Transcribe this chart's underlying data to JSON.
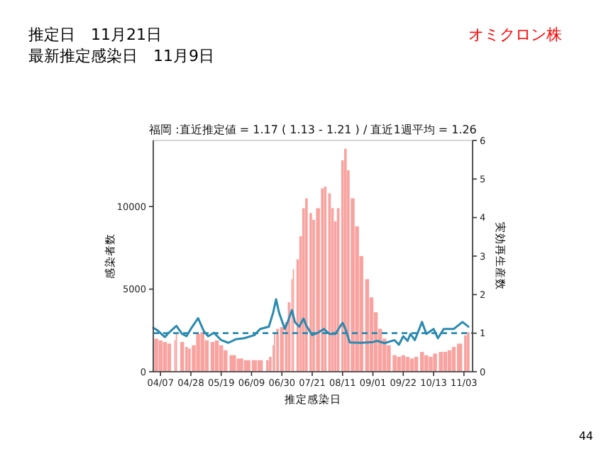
{
  "chart_data": {
    "type": "bar",
    "title": "福岡 :直近推定値 = 1.17 ( 1.13 - 1.21 ) / 直近1週平均 = 1.26",
    "subtitle": "推定日　11月21日",
    "xlabel": "推定感染日",
    "ylabel": "感染者数",
    "y2label": "実効再生産数",
    "annotations": [
      "最新推定感染日　11月9日",
      "オミクロン株",
      "44"
    ],
    "xlim": [
      "--04-02",
      "--11-09"
    ],
    "xticks": [
      {
        "value": "--04-07",
        "label": "04/07"
      },
      {
        "value": "--04-28",
        "label": "04/28"
      },
      {
        "value": "--05-19",
        "label": "05/19"
      },
      {
        "value": "--06-09",
        "label": "06/09"
      },
      {
        "value": "--06-30",
        "label": "06/30"
      },
      {
        "value": "--07-21",
        "label": "07/21"
      },
      {
        "value": "--08-11",
        "label": "08/11"
      },
      {
        "value": "--09-01",
        "label": "09/01"
      },
      {
        "value": "--09-22",
        "label": "09/22"
      },
      {
        "value": "--10-13",
        "label": "10/13"
      },
      {
        "value": "--11-03",
        "label": "11/03"
      }
    ],
    "ylim": [
      0,
      14000
    ],
    "yticks": [
      0,
      5000,
      10000
    ],
    "y2lim": [
      0,
      6
    ],
    "y2ticks": [
      0,
      1,
      2,
      3,
      4,
      5,
      6
    ],
    "ref_lines": [
      {
        "axis": "y2",
        "value": 1,
        "color": "#2a8ab0",
        "line_style": "dashed"
      }
    ],
    "series": [
      {
        "color": "#f8a3a0",
        "x": [
          "--04-04",
          "--04-07",
          "--04-10",
          "--04-13",
          "--04-17",
          "--04-18",
          "--04-22",
          "--04-25",
          "--04-27",
          "--04-30",
          "--05-03",
          "--05-06",
          "--05-09",
          "--05-13",
          "--05-16",
          "--05-19",
          "--05-22",
          "--05-27",
          "--06-01",
          "--06-06",
          "--06-11",
          "--06-15",
          "--06-20",
          "--06-22",
          "--06-24",
          "--06-25",
          "--06-27",
          "--06-30",
          "--07-03",
          "--07-05",
          "--07-07",
          "--07-08",
          "--07-11",
          "--07-13",
          "--07-15",
          "--07-17",
          "--07-20",
          "--07-22",
          "--07-25",
          "--07-28",
          "--07-30",
          "--08-02",
          "--08-04",
          "--08-06",
          "--08-08",
          "--08-11",
          "--08-13",
          "--08-15",
          "--08-18",
          "--08-21",
          "--08-24",
          "--08-28",
          "--08-31",
          "--09-03",
          "--09-06",
          "--09-09",
          "--09-12",
          "--09-16",
          "--09-19",
          "--09-22",
          "--09-25",
          "--09-28",
          "--10-01",
          "--10-05",
          "--10-08",
          "--10-11",
          "--10-14",
          "--10-18",
          "--10-21",
          "--10-24",
          "--10-27",
          "--10-31",
          "--11-04",
          "--11-06"
        ],
        "values": [
          2000,
          1900,
          1800,
          1700,
          1900,
          2300,
          1800,
          1500,
          1400,
          1600,
          2300,
          2400,
          1900,
          1800,
          1900,
          1600,
          1300,
          1000,
          800,
          700,
          700,
          700,
          700,
          900,
          1600,
          2300,
          2600,
          2700,
          3000,
          4200,
          5600,
          6200,
          6800,
          8200,
          9900,
          10500,
          9600,
          9200,
          9900,
          11100,
          11200,
          10800,
          9900,
          9100,
          9900,
          12800,
          13500,
          12200,
          10500,
          8800,
          7000,
          5600,
          4500,
          3600,
          2600,
          2000,
          1600,
          1000,
          900,
          1000,
          900,
          800,
          900,
          1200,
          1000,
          900,
          1100,
          1200,
          1200,
          1300,
          1500,
          1700,
          2200,
          2400
        ]
      },
      {
        "type": "line",
        "axis": "y2",
        "color": "#2a8ab0",
        "x": [
          "--04-02",
          "--04-05",
          "--04-10",
          "--04-13",
          "--04-18",
          "--04-22",
          "--04-25",
          "--04-28",
          "--05-03",
          "--05-07",
          "--05-10",
          "--05-14",
          "--05-19",
          "--05-24",
          "--05-29",
          "--06-04",
          "--06-11",
          "--06-15",
          "--06-21",
          "--06-24",
          "--06-26",
          "--06-28",
          "--07-02",
          "--07-04",
          "--07-07",
          "--07-09",
          "--07-12",
          "--07-15",
          "--07-17",
          "--07-21",
          "--07-25",
          "--07-29",
          "--08-02",
          "--08-06",
          "--08-11",
          "--08-13",
          "--08-16",
          "--08-24",
          "--09-01",
          "--09-04",
          "--09-09",
          "--09-16",
          "--09-19",
          "--09-22",
          "--09-25",
          "--09-27",
          "--09-30",
          "--10-05",
          "--10-08",
          "--10-13",
          "--10-16",
          "--10-20",
          "--10-27",
          "--11-02",
          "--11-06"
        ],
        "values": [
          1.14,
          1.07,
          0.9,
          1.02,
          1.19,
          0.98,
          0.92,
          1.11,
          1.39,
          1.05,
          0.92,
          1.01,
          0.82,
          0.75,
          0.84,
          0.87,
          0.95,
          1.11,
          1.17,
          1.54,
          1.88,
          1.54,
          1.11,
          1.29,
          1.6,
          1.29,
          1.17,
          1.38,
          1.19,
          0.95,
          1.01,
          1.11,
          0.98,
          0.98,
          1.27,
          1.11,
          0.76,
          0.75,
          0.77,
          0.8,
          0.74,
          0.82,
          0.7,
          0.92,
          0.8,
          0.98,
          0.82,
          1.29,
          0.98,
          1.11,
          0.87,
          1.11,
          1.11,
          1.29,
          1.17
        ]
      }
    ]
  }
}
